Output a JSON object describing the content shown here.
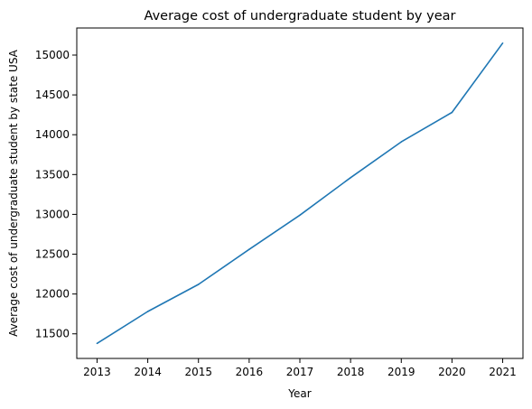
{
  "chart_data": {
    "type": "line",
    "title": "Average cost of undergraduate student by year",
    "xlabel": "Year",
    "ylabel": "Average cost of undergraduate student by state USA",
    "x": [
      2013,
      2014,
      2015,
      2016,
      2017,
      2018,
      2019,
      2020,
      2021
    ],
    "series": [
      {
        "values": [
          11380,
          11780,
          12120,
          12560,
          12990,
          13460,
          13910,
          14280,
          15150
        ],
        "color": "#1f77b4"
      }
    ],
    "xticks": [
      "2013",
      "2014",
      "2015",
      "2016",
      "2017",
      "2018",
      "2019",
      "2020",
      "2021"
    ],
    "yticks": [
      "11500",
      "12000",
      "12500",
      "13000",
      "13500",
      "14000",
      "14500",
      "15000"
    ],
    "xlim": [
      2012.6,
      2021.4
    ],
    "ylim": [
      11191,
      15340
    ],
    "grid": false,
    "legend": "none"
  }
}
